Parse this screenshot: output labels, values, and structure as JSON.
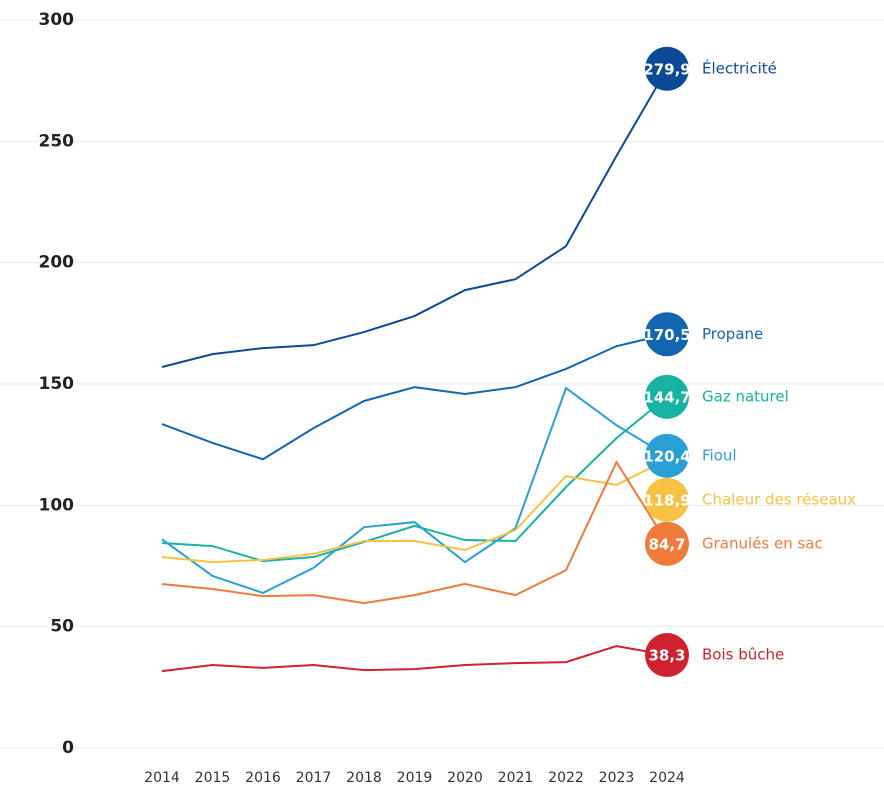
{
  "chart_data": {
    "type": "line",
    "x": [
      2014,
      2015,
      2016,
      2017,
      2018,
      2019,
      2020,
      2021,
      2022,
      2023,
      2024
    ],
    "xlim": [
      2014,
      2024
    ],
    "xticks": [
      2014,
      2015,
      2016,
      2017,
      2018,
      2019,
      2020,
      2021,
      2022,
      2023,
      2024
    ],
    "ylim": [
      0,
      300
    ],
    "yticks": [
      0,
      50,
      100,
      150,
      200,
      250,
      300
    ],
    "grid": true,
    "series": [
      {
        "name": "Électricité",
        "color": "#0d4a96",
        "values": [
          157,
          162.3,
          164.8,
          166,
          171.4,
          178,
          188.7,
          193.2,
          206.8,
          244,
          279.9
        ],
        "value_labels": [
          null,
          null,
          null,
          null,
          null,
          null,
          null,
          null,
          null,
          null,
          "279,9"
        ]
      },
      {
        "name": "Propane",
        "color": "#1266b0",
        "values": [
          133.5,
          125.7,
          119,
          131.8,
          143,
          148.7,
          145.9,
          148.7,
          156.2,
          165.6,
          170.5
        ],
        "value_labels": [
          null,
          null,
          null,
          null,
          null,
          null,
          null,
          null,
          null,
          null,
          "170,5"
        ]
      },
      {
        "name": "Gaz naturel",
        "color": "#16b3a3",
        "values": [
          84.5,
          83.2,
          77,
          78.7,
          84.9,
          91.5,
          85.7,
          85.3,
          107.5,
          127.7,
          144.7
        ],
        "value_labels": [
          null,
          null,
          null,
          null,
          null,
          null,
          null,
          null,
          null,
          null,
          "144,7"
        ]
      },
      {
        "name": "Fioul",
        "color": "#2a9fd6",
        "values": [
          86,
          70.9,
          63.9,
          74.2,
          91,
          93.1,
          76.6,
          90.6,
          148.3,
          133,
          120.4
        ],
        "value_labels": [
          null,
          null,
          null,
          null,
          null,
          null,
          null,
          null,
          null,
          null,
          "120,4"
        ]
      },
      {
        "name": "Chaleur des réseaux",
        "color": "#f7c244",
        "values": [
          78.7,
          76.6,
          77.5,
          80,
          85.3,
          85.3,
          81.6,
          89.8,
          112,
          108.4,
          118.9
        ],
        "value_labels": [
          null,
          null,
          null,
          null,
          null,
          null,
          null,
          null,
          null,
          null,
          "118,9"
        ]
      },
      {
        "name": "Granulés en sac",
        "color": "#f07a3a",
        "values": [
          67.6,
          65.5,
          62.6,
          63,
          59.7,
          63,
          67.6,
          63,
          73.3,
          117.8,
          84.7
        ],
        "value_labels": [
          null,
          null,
          null,
          null,
          null,
          null,
          null,
          null,
          null,
          null,
          "84,7"
        ]
      },
      {
        "name": "Bois bûche",
        "color": "#d0222e",
        "values": [
          31.7,
          34.2,
          33,
          34.2,
          32.1,
          32.5,
          34.2,
          35,
          35.4,
          42,
          38.3
        ],
        "value_labels": [
          null,
          null,
          null,
          null,
          null,
          null,
          null,
          null,
          null,
          null,
          "38,3"
        ]
      }
    ]
  }
}
